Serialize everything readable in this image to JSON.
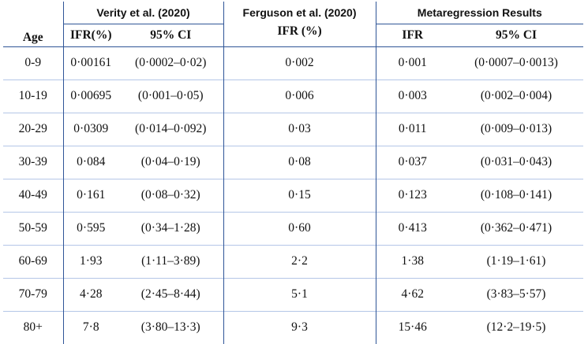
{
  "headers": {
    "age": "Age",
    "verity": {
      "group": "Verity et al. (2020)",
      "ifr": "IFR(%)",
      "ci": "95% CI"
    },
    "ferguson": {
      "group": "Ferguson et al. (2020)",
      "ifr": "IFR (%)"
    },
    "meta": {
      "group": "Metaregression Results",
      "ifr": "IFR",
      "ci": "95% CI"
    }
  },
  "rows": [
    {
      "age": "0-9",
      "verity_ifr": "0·00161",
      "verity_ci": "(0·0002–0·02)",
      "ferguson_ifr": "0·002",
      "meta_ifr": "0·001",
      "meta_ci": "(0·0007–0·0013)"
    },
    {
      "age": "10-19",
      "verity_ifr": "0·00695",
      "verity_ci": "(0·001–0·05)",
      "ferguson_ifr": "0·006",
      "meta_ifr": "0·003",
      "meta_ci": "(0·002–0·004)"
    },
    {
      "age": "20-29",
      "verity_ifr": "0·0309",
      "verity_ci": "(0·014–0·092)",
      "ferguson_ifr": "0·03",
      "meta_ifr": "0·011",
      "meta_ci": "(0·009–0·013)"
    },
    {
      "age": "30-39",
      "verity_ifr": "0·084",
      "verity_ci": "(0·04–0·19)",
      "ferguson_ifr": "0·08",
      "meta_ifr": "0·037",
      "meta_ci": "(0·031–0·043)"
    },
    {
      "age": "40-49",
      "verity_ifr": "0·161",
      "verity_ci": "(0·08–0·32)",
      "ferguson_ifr": "0·15",
      "meta_ifr": "0·123",
      "meta_ci": "(0·108–0·141)"
    },
    {
      "age": "50-59",
      "verity_ifr": "0·595",
      "verity_ci": "(0·34–1·28)",
      "ferguson_ifr": "0·60",
      "meta_ifr": "0·413",
      "meta_ci": "(0·362–0·471)"
    },
    {
      "age": "60-69",
      "verity_ifr": "1·93",
      "verity_ci": "(1·11–3·89)",
      "ferguson_ifr": "2·2",
      "meta_ifr": "1·38",
      "meta_ci": "(1·19–1·61)"
    },
    {
      "age": "70-79",
      "verity_ifr": "4·28",
      "verity_ci": "(2·45–8·44)",
      "ferguson_ifr": "5·1",
      "meta_ifr": "4·62",
      "meta_ci": "(3·83–5·57)"
    },
    {
      "age": "80+",
      "verity_ifr": "7·8",
      "verity_ci": "(3·80–13·3)",
      "ferguson_ifr": "9·3",
      "meta_ifr": "15·46",
      "meta_ci": "(12·2–19·5)"
    }
  ]
}
